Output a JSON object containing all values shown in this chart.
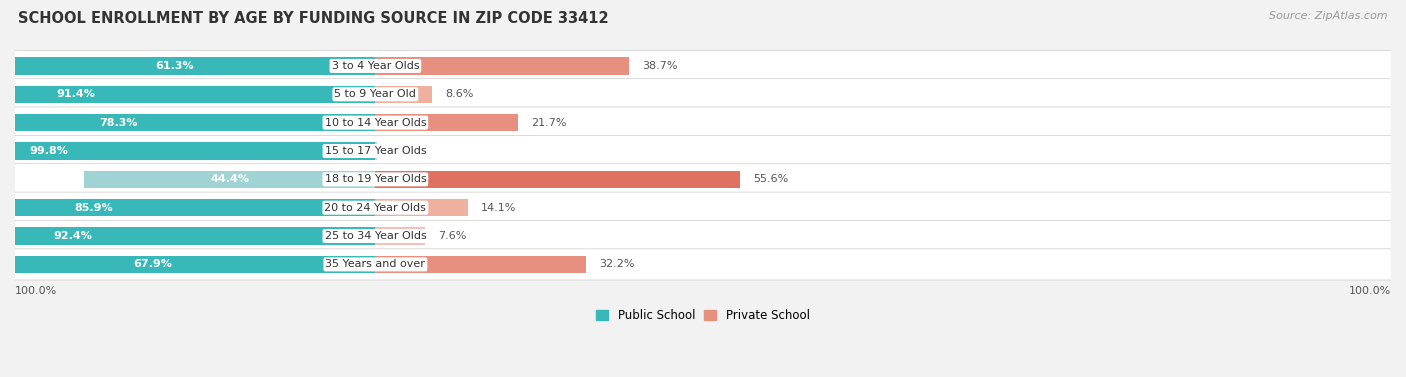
{
  "title": "SCHOOL ENROLLMENT BY AGE BY FUNDING SOURCE IN ZIP CODE 33412",
  "source": "Source: ZipAtlas.com",
  "categories": [
    "3 to 4 Year Olds",
    "5 to 9 Year Old",
    "10 to 14 Year Olds",
    "15 to 17 Year Olds",
    "18 to 19 Year Olds",
    "20 to 24 Year Olds",
    "25 to 34 Year Olds",
    "35 Years and over"
  ],
  "public": [
    61.3,
    91.4,
    78.3,
    99.8,
    44.4,
    85.9,
    92.4,
    67.9
  ],
  "private": [
    38.7,
    8.6,
    21.7,
    0.2,
    55.6,
    14.1,
    7.6,
    32.2
  ],
  "public_color": "#38b8b8",
  "public_color_light": "#a0d4d4",
  "private_color_strong": "#e07060",
  "private_color_medium": "#e89080",
  "private_color_light": "#f0b0a0",
  "private_color_vlight": "#f4c0b5",
  "bg_color": "#f2f2f2",
  "row_bg": "#ffffff",
  "title_fontsize": 10.5,
  "source_fontsize": 8,
  "bar_label_fontsize": 8,
  "category_fontsize": 8,
  "legend_fontsize": 8.5,
  "axis_label_fontsize": 8
}
